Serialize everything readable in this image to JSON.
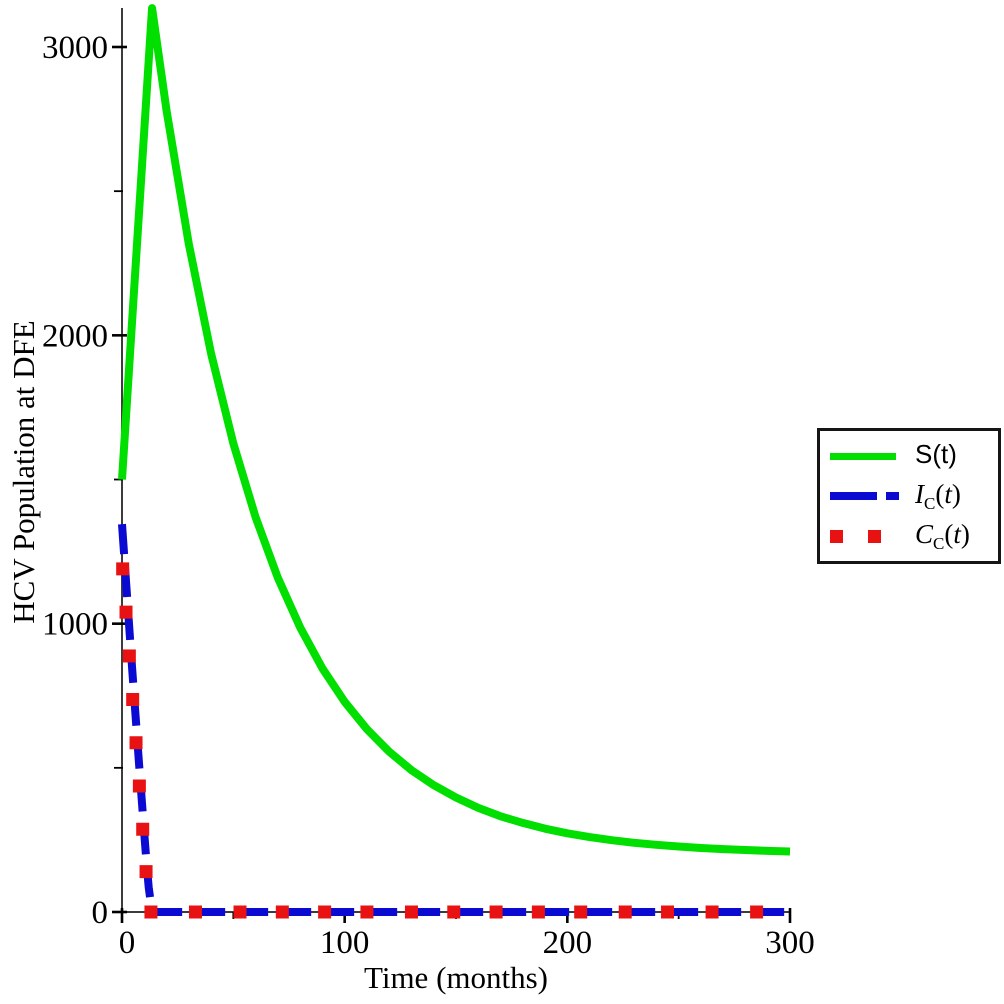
{
  "figure": {
    "background": "#ffffff"
  },
  "chart_data": {
    "type": "line",
    "title": "",
    "xlabel": "Time (months)",
    "ylabel": "HCV Population at DFE",
    "xlim": [
      0,
      300
    ],
    "ylim": [
      0,
      3135
    ],
    "grid": false,
    "axis_color": "#3c3c3c",
    "tick_color": "#000000",
    "x_major_ticks": [
      0,
      100,
      200,
      300
    ],
    "x_minor_ticks": [
      50,
      150,
      250
    ],
    "y_major_ticks": [
      0,
      1000,
      2000,
      3000
    ],
    "y_minor_ticks": [
      500,
      1500,
      2500
    ],
    "legend_position": "outside-right",
    "series": [
      {
        "name": "S(t)",
        "color": "#00DF00",
        "style": "solid",
        "line_width": 8,
        "points": [
          [
            0,
            1500
          ],
          [
            13.5,
            3135
          ],
          [
            20,
            2780
          ],
          [
            30,
            2317
          ],
          [
            40,
            1937
          ],
          [
            50,
            1625
          ],
          [
            60,
            1369
          ],
          [
            70,
            1159
          ],
          [
            80,
            987
          ],
          [
            90,
            845
          ],
          [
            100,
            729
          ],
          [
            110,
            634
          ],
          [
            120,
            556
          ],
          [
            130,
            492
          ],
          [
            140,
            440
          ],
          [
            150,
            397
          ],
          [
            160,
            361
          ],
          [
            170,
            332
          ],
          [
            180,
            309
          ],
          [
            190,
            289
          ],
          [
            200,
            273
          ],
          [
            210,
            260
          ],
          [
            220,
            249
          ],
          [
            230,
            240
          ],
          [
            240,
            233
          ],
          [
            250,
            227
          ],
          [
            260,
            222
          ],
          [
            270,
            218
          ],
          [
            280,
            215
          ],
          [
            290,
            212
          ],
          [
            300,
            210
          ]
        ]
      },
      {
        "name": "I_C(t)",
        "color": "#0A0AD2",
        "style": "dashed",
        "line_width": 8,
        "dash": [
          30,
          13
        ],
        "points": [
          [
            0,
            1345
          ],
          [
            1.5,
            1180
          ],
          [
            3,
            1015
          ],
          [
            4.5,
            850
          ],
          [
            6,
            690
          ],
          [
            7.5,
            530
          ],
          [
            9,
            375
          ],
          [
            10,
            272
          ],
          [
            11,
            172
          ],
          [
            12,
            85
          ],
          [
            13,
            28
          ],
          [
            14,
            6
          ],
          [
            15.5,
            0
          ],
          [
            300,
            0
          ]
        ]
      },
      {
        "name": "C_C(t)",
        "color": "#E81212",
        "style": "squares",
        "marker_size": 13,
        "points": [
          [
            0.3,
            1190
          ],
          [
            1.8,
            1040
          ],
          [
            3.3,
            888
          ],
          [
            4.8,
            737
          ],
          [
            6.3,
            587
          ],
          [
            7.8,
            437
          ],
          [
            9.3,
            287
          ],
          [
            10.8,
            140
          ],
          [
            13,
            0
          ],
          [
            33,
            0
          ],
          [
            53,
            0
          ],
          [
            72,
            0
          ],
          [
            91,
            0
          ],
          [
            110,
            0
          ],
          [
            130,
            0
          ],
          [
            149,
            0
          ],
          [
            168,
            0
          ],
          [
            187,
            0
          ],
          [
            206,
            0
          ],
          [
            226,
            0
          ],
          [
            245,
            0
          ],
          [
            265,
            0
          ],
          [
            285,
            0
          ]
        ]
      }
    ],
    "legend": {
      "items": [
        {
          "pre": "S",
          "sub": "",
          "open": "(",
          "var": "t",
          "close": ")",
          "style": "plain"
        },
        {
          "pre": "I",
          "sub": "C",
          "open": "(",
          "var": "t",
          "close": ")",
          "style": "math"
        },
        {
          "pre": "C",
          "sub": "C",
          "open": "(",
          "var": "t",
          "close": ")",
          "style": "math"
        }
      ]
    }
  }
}
